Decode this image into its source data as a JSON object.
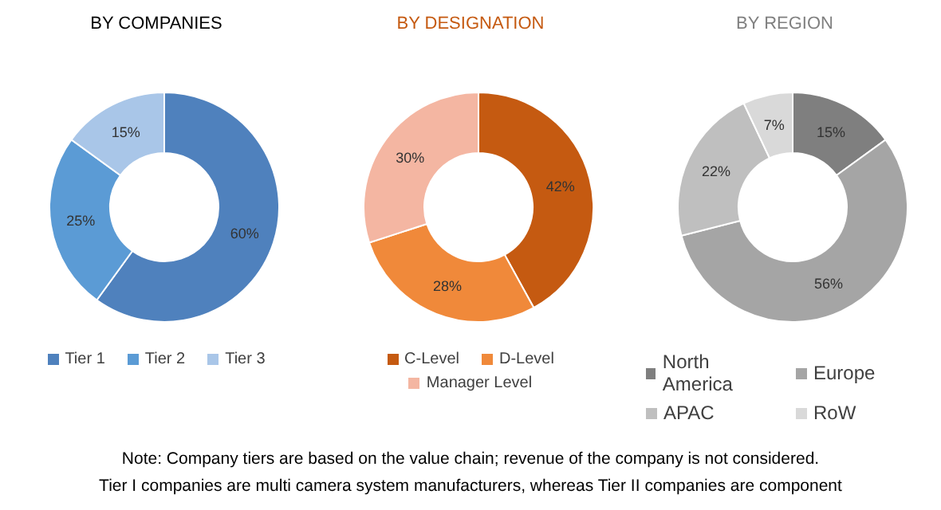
{
  "chart_data": [
    {
      "type": "donut",
      "title": "BY COMPANIES",
      "categories": [
        "Tier 1",
        "Tier 2",
        "Tier 3"
      ],
      "values": [
        60,
        25,
        15
      ],
      "value_labels": [
        "60%",
        "25%",
        "15%"
      ],
      "colors": [
        "#4f81bd",
        "#5b9bd5",
        "#a9c6e8"
      ],
      "legend": "bottom",
      "annotations": [
        "Note: Company  tiers are based on the value chain; revenue of the company is not considered.",
        "Tier I companies are multi camera system manufacturers,  whereas Tier II companies are component"
      ]
    },
    {
      "type": "donut",
      "title": "BY DESIGNATION",
      "categories": [
        "C-Level",
        "D-Level",
        "Manager Level"
      ],
      "values": [
        42,
        28,
        30
      ],
      "value_labels": [
        "42%",
        "28%",
        "30%"
      ],
      "colors": [
        "#c55a11",
        "#f0893a",
        "#f4b6a2"
      ],
      "legend": "bottom"
    },
    {
      "type": "donut",
      "title": "BY REGION",
      "categories": [
        "North America",
        "Europe",
        "APAC",
        "RoW"
      ],
      "values": [
        15,
        56,
        22,
        7
      ],
      "value_labels": [
        "15%",
        "56%",
        "22%",
        "7%"
      ],
      "colors": [
        "#7f7f7f",
        "#a5a5a5",
        "#bfbfbf",
        "#d9d9d9"
      ],
      "legend": "bottom"
    }
  ]
}
